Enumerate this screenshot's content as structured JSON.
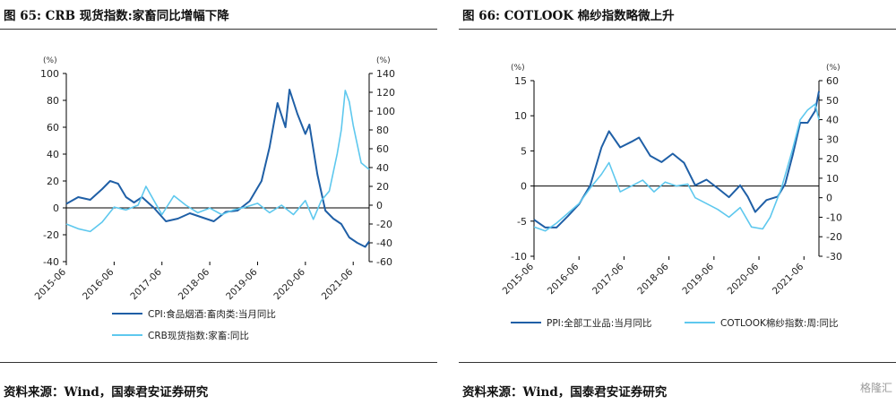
{
  "left": {
    "title": "图 65: CRB 现货指数:家畜同比增幅下降",
    "source": "资料来源：Wind，国泰君安证券研究"
  },
  "right": {
    "title": "图 66: COTLOOK 棉纱指数略微上升",
    "source": "资料来源：Wind，国泰君安证券研究"
  },
  "watermark": "格隆汇",
  "colors": {
    "dark": "#1f5fa6",
    "light": "#5ec8ee",
    "axis": "#000000"
  },
  "chart_data": [
    {
      "type": "line",
      "x_ticks": [
        "2015-06",
        "2016-06",
        "2017-06",
        "2018-06",
        "2019-06",
        "2020-06",
        "2021-06"
      ],
      "x_range": [
        "2015-06",
        "2021-10"
      ],
      "y_left": {
        "unit": "(%)",
        "ticks": [
          100,
          80,
          60,
          40,
          20,
          0,
          -20,
          -40
        ],
        "range": [
          -40,
          100
        ]
      },
      "y_right": {
        "unit": "(%)",
        "ticks": [
          140,
          120,
          100,
          80,
          60,
          40,
          20,
          0,
          -20,
          -40,
          -60
        ],
        "range": [
          -60,
          140
        ]
      },
      "legend_placement": "bottom",
      "series": [
        {
          "name": "CPI:食品烟酒:畜肉类:当月同比",
          "color": "dark",
          "axis": "left",
          "points": [
            [
              "2015-06",
              3
            ],
            [
              "2015-09",
              8
            ],
            [
              "2015-12",
              6
            ],
            [
              "2016-03",
              14
            ],
            [
              "2016-05",
              20
            ],
            [
              "2016-07",
              18
            ],
            [
              "2016-09",
              8
            ],
            [
              "2016-11",
              4
            ],
            [
              "2017-01",
              8
            ],
            [
              "2017-04",
              0
            ],
            [
              "2017-07",
              -10
            ],
            [
              "2017-10",
              -8
            ],
            [
              "2018-01",
              -4
            ],
            [
              "2018-04",
              -7
            ],
            [
              "2018-07",
              -10
            ],
            [
              "2018-10",
              -3
            ],
            [
              "2019-01",
              -2
            ],
            [
              "2019-04",
              5
            ],
            [
              "2019-07",
              20
            ],
            [
              "2019-09",
              45
            ],
            [
              "2019-11",
              78
            ],
            [
              "2020-01",
              60
            ],
            [
              "2020-02",
              88
            ],
            [
              "2020-04",
              70
            ],
            [
              "2020-06",
              55
            ],
            [
              "2020-07",
              62
            ],
            [
              "2020-09",
              25
            ],
            [
              "2020-11",
              -2
            ],
            [
              "2021-01",
              -8
            ],
            [
              "2021-03",
              -12
            ],
            [
              "2021-05",
              -22
            ],
            [
              "2021-07",
              -26
            ],
            [
              "2021-09",
              -29
            ],
            [
              "2021-10",
              -25
            ]
          ]
        },
        {
          "name": "CRB现货指数:家畜:同比",
          "color": "light",
          "axis": "right",
          "points": [
            [
              "2015-06",
              -20
            ],
            [
              "2015-09",
              -25
            ],
            [
              "2015-12",
              -28
            ],
            [
              "2016-03",
              -18
            ],
            [
              "2016-06",
              -2
            ],
            [
              "2016-09",
              -5
            ],
            [
              "2016-12",
              0
            ],
            [
              "2017-02",
              20
            ],
            [
              "2017-04",
              5
            ],
            [
              "2017-06",
              -10
            ],
            [
              "2017-09",
              10
            ],
            [
              "2017-12",
              0
            ],
            [
              "2018-03",
              -8
            ],
            [
              "2018-06",
              -3
            ],
            [
              "2018-09",
              -10
            ],
            [
              "2018-12",
              -5
            ],
            [
              "2019-03",
              -2
            ],
            [
              "2019-06",
              2
            ],
            [
              "2019-09",
              -8
            ],
            [
              "2019-12",
              0
            ],
            [
              "2020-03",
              -10
            ],
            [
              "2020-06",
              5
            ],
            [
              "2020-08",
              -15
            ],
            [
              "2020-10",
              5
            ],
            [
              "2020-12",
              15
            ],
            [
              "2021-02",
              55
            ],
            [
              "2021-03",
              80
            ],
            [
              "2021-04",
              122
            ],
            [
              "2021-05",
              110
            ],
            [
              "2021-06",
              85
            ],
            [
              "2021-08",
              45
            ],
            [
              "2021-10",
              38
            ]
          ]
        }
      ]
    },
    {
      "type": "line",
      "x_ticks": [
        "2015-06",
        "2016-06",
        "2017-06",
        "2018-06",
        "2019-06",
        "2020-06",
        "2021-06"
      ],
      "x_range": [
        "2015-06",
        "2021-10"
      ],
      "y_left": {
        "unit": "(%)",
        "ticks": [
          15,
          10,
          5,
          0,
          -5,
          -10
        ],
        "range": [
          -10,
          15
        ]
      },
      "y_right": {
        "unit": "(%)",
        "ticks": [
          60,
          50,
          40,
          30,
          20,
          10,
          0,
          -10,
          -20,
          -30
        ],
        "range": [
          -30,
          60
        ]
      },
      "legend_placement": "bottom",
      "series": [
        {
          "name": "PPI:全部工业品:当月同比",
          "color": "dark",
          "axis": "left",
          "points": [
            [
              "2015-06",
              -4.8
            ],
            [
              "2015-09",
              -5.9
            ],
            [
              "2015-12",
              -5.9
            ],
            [
              "2016-03",
              -4.3
            ],
            [
              "2016-06",
              -2.6
            ],
            [
              "2016-09",
              0.1
            ],
            [
              "2016-12",
              5.5
            ],
            [
              "2017-02",
              7.8
            ],
            [
              "2017-05",
              5.5
            ],
            [
              "2017-08",
              6.3
            ],
            [
              "2017-10",
              6.9
            ],
            [
              "2018-01",
              4.3
            ],
            [
              "2018-04",
              3.4
            ],
            [
              "2018-07",
              4.6
            ],
            [
              "2018-10",
              3.3
            ],
            [
              "2019-01",
              0.1
            ],
            [
              "2019-04",
              0.9
            ],
            [
              "2019-07",
              -0.3
            ],
            [
              "2019-10",
              -1.6
            ],
            [
              "2020-01",
              0.1
            ],
            [
              "2020-03",
              -1.5
            ],
            [
              "2020-05",
              -3.7
            ],
            [
              "2020-08",
              -2.0
            ],
            [
              "2020-11",
              -1.5
            ],
            [
              "2021-01",
              0.3
            ],
            [
              "2021-03",
              4.4
            ],
            [
              "2021-05",
              9.0
            ],
            [
              "2021-07",
              9.0
            ],
            [
              "2021-09",
              10.7
            ],
            [
              "2021-10",
              13.5
            ]
          ]
        },
        {
          "name": "COTLOOK棉纱指数:周:同比",
          "color": "light",
          "axis": "right",
          "points": [
            [
              "2015-06",
              -15
            ],
            [
              "2015-09",
              -17
            ],
            [
              "2015-12",
              -13
            ],
            [
              "2016-03",
              -8
            ],
            [
              "2016-06",
              -3
            ],
            [
              "2016-09",
              5
            ],
            [
              "2016-12",
              12
            ],
            [
              "2017-02",
              18
            ],
            [
              "2017-05",
              3
            ],
            [
              "2017-08",
              6
            ],
            [
              "2017-11",
              9
            ],
            [
              "2018-02",
              3
            ],
            [
              "2018-05",
              8
            ],
            [
              "2018-08",
              6
            ],
            [
              "2018-11",
              7
            ],
            [
              "2019-01",
              0
            ],
            [
              "2019-04",
              -3
            ],
            [
              "2019-07",
              -6
            ],
            [
              "2019-10",
              -10
            ],
            [
              "2020-01",
              -5
            ],
            [
              "2020-04",
              -15
            ],
            [
              "2020-07",
              -16
            ],
            [
              "2020-09",
              -10
            ],
            [
              "2020-12",
              5
            ],
            [
              "2021-03",
              25
            ],
            [
              "2021-05",
              40
            ],
            [
              "2021-07",
              45
            ],
            [
              "2021-09",
              48
            ],
            [
              "2021-10",
              40
            ]
          ]
        }
      ]
    }
  ]
}
